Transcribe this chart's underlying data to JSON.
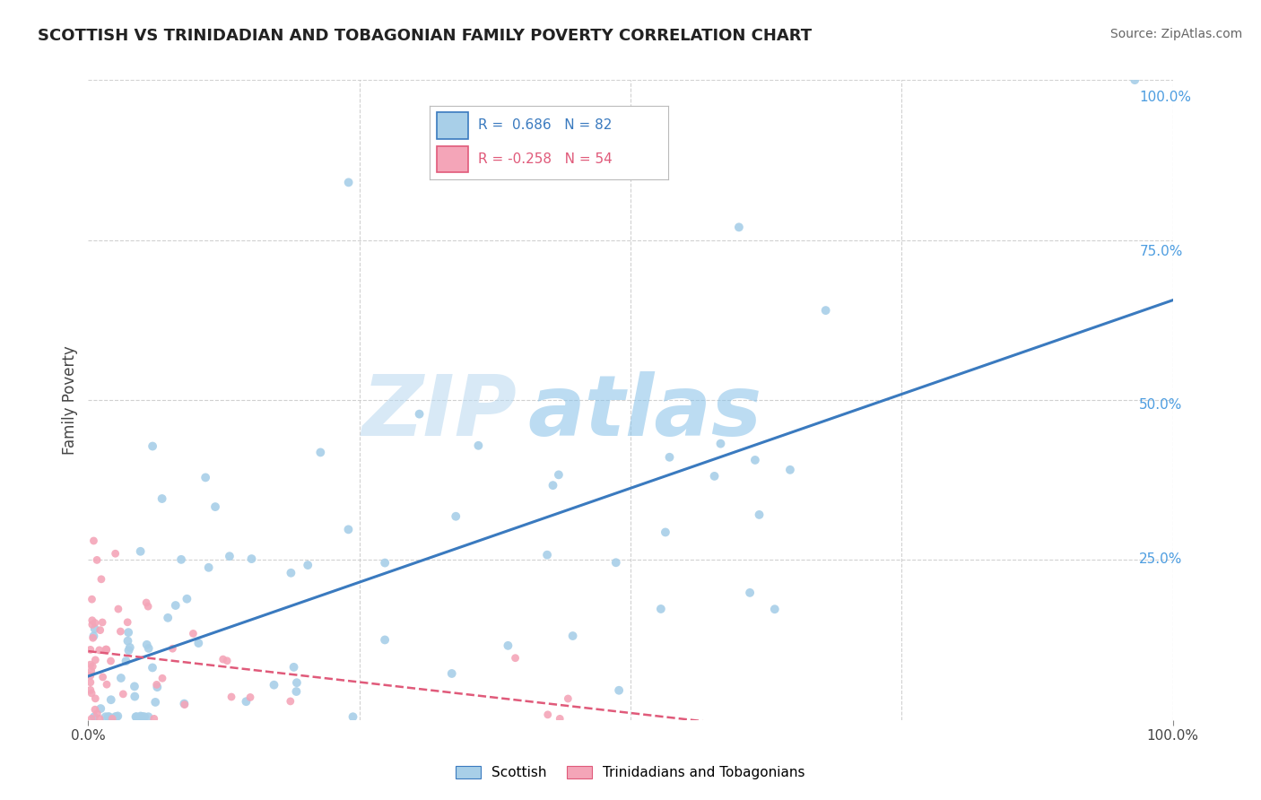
{
  "title": "SCOTTISH VS TRINIDADIAN AND TOBAGONIAN FAMILY POVERTY CORRELATION CHART",
  "source_text": "Source: ZipAtlas.com",
  "ylabel": "Family Poverty",
  "watermark_part1": "ZIP",
  "watermark_part2": "atlas",
  "scottish_R": 0.686,
  "scottish_N": 82,
  "trinidadian_R": -0.258,
  "trinidadian_N": 54,
  "scottish_color": "#a8cfe8",
  "trinidadian_color": "#f4a5b8",
  "trend_scottish_color": "#3a7abf",
  "trend_trini_color": "#e05a7a",
  "background_color": "#ffffff",
  "grid_color": "#cccccc",
  "legend_border_color": "#bbbbbb",
  "right_tick_color": "#4d9de0",
  "title_color": "#222222",
  "source_color": "#666666"
}
